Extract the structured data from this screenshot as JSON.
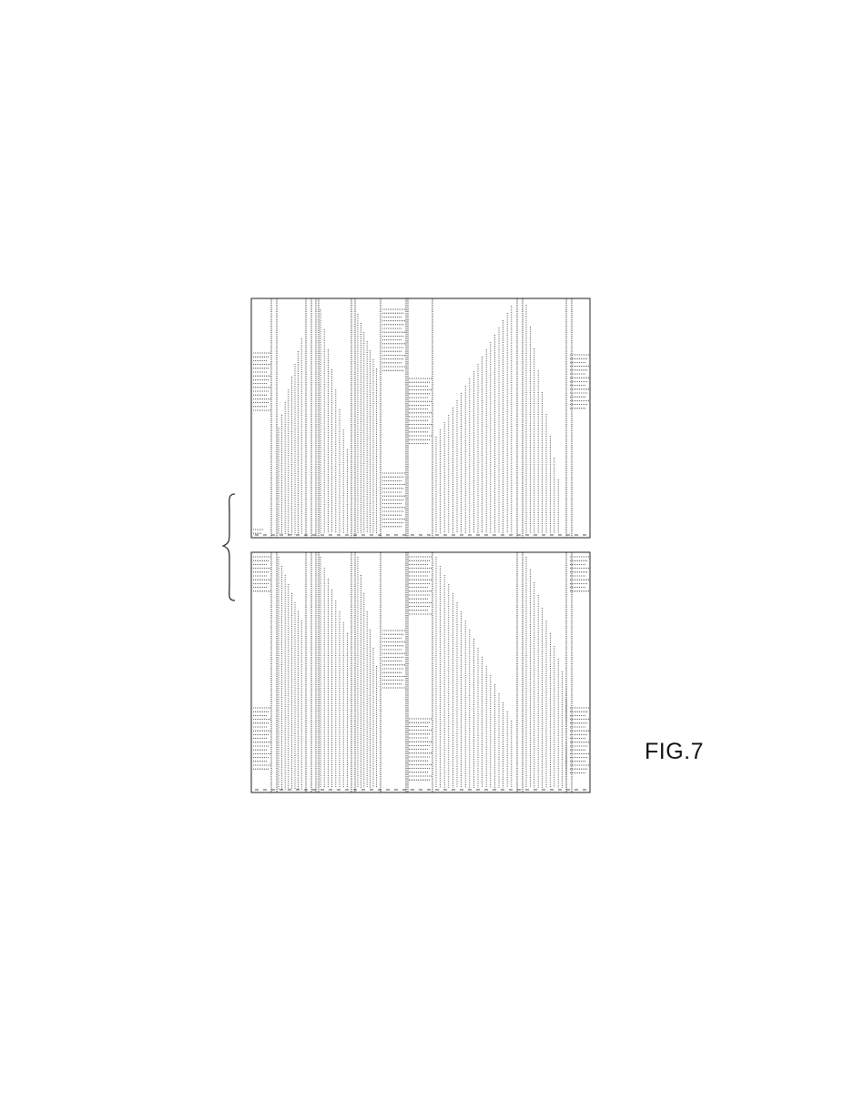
{
  "figure": {
    "label": "FIG.7"
  },
  "colors": {
    "ink": "#222222",
    "paper": "#ffffff"
  }
}
